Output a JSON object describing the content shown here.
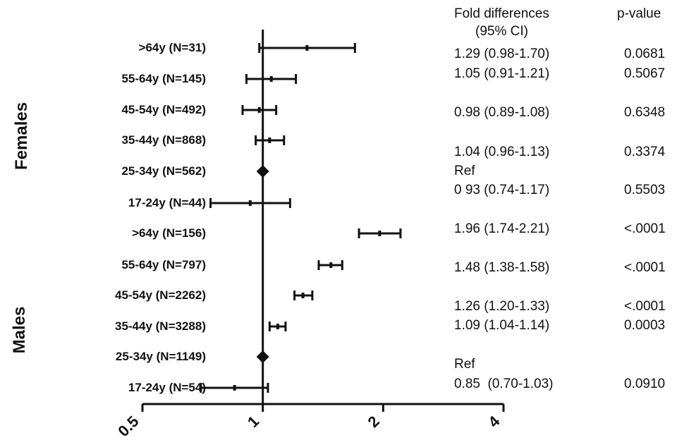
{
  "groups": [
    "Females",
    "Males"
  ],
  "headers": {
    "fold": "Fold differences",
    "ci": "(95% CI)",
    "p": "p-value"
  },
  "rows": [
    {
      "label": ">64y (N=31)",
      "fold": "1.29 (0.98-1.70)",
      "p": "0.0681"
    },
    {
      "label": "55-64y (N=145)",
      "fold": "1.05 (0.91-1.21)",
      "p": "0.5067"
    },
    {
      "label": "45-54y (N=492)",
      "fold": "0.98 (0.89-1.08)",
      "p": "0.6348"
    },
    {
      "label": "35-44y (N=868)",
      "fold": "1.04 (0.96-1.13)",
      "p": "0.3374"
    },
    {
      "label": "25-34y (N=562)",
      "fold": "Ref",
      "p": ""
    },
    {
      "label": "17-24y (N=44)",
      "fold": "0 93 (0.74-1.17)",
      "p": "0.5503"
    },
    {
      "label": ">64y (N=156)",
      "fold": "1.96 (1.74-2.21)",
      "p": "<.0001"
    },
    {
      "label": "55-64y (N=797)",
      "fold": "1.48 (1.38-1.58)",
      "p": "<.0001"
    },
    {
      "label": "45-54y (N=2262)",
      "fold": "1.26 (1.20-1.33)",
      "p": "<.0001"
    },
    {
      "label": "35-44y (N=3288)",
      "fold": "1.09 (1.04-1.14)",
      "p": "0.0003"
    },
    {
      "label": "25-34y (N=1149)",
      "fold": "Ref",
      "p": ""
    },
    {
      "label": "17-24y (N=54)",
      "fold": "0.85  (0.70-1.03)",
      "p": "0.0910"
    }
  ],
  "chart_data": {
    "type": "forest",
    "x_scale": "log2",
    "xlim": [
      0.5,
      4
    ],
    "xticks": [
      "0.5",
      "1",
      "2",
      "4"
    ],
    "reference_line": 1,
    "groups": [
      {
        "name": "Females",
        "points": [
          {
            "label": ">64y (N=31)",
            "estimate": 1.29,
            "lower": 0.98,
            "upper": 1.7
          },
          {
            "label": "55-64y (N=145)",
            "estimate": 1.05,
            "lower": 0.91,
            "upper": 1.21
          },
          {
            "label": "45-54y (N=492)",
            "estimate": 0.98,
            "lower": 0.89,
            "upper": 1.08
          },
          {
            "label": "35-44y (N=868)",
            "estimate": 1.04,
            "lower": 0.96,
            "upper": 1.13
          },
          {
            "label": "25-34y (N=562)",
            "estimate": 1.0,
            "reference": true
          },
          {
            "label": "17-24y (N=44)",
            "estimate": 0.93,
            "lower": 0.74,
            "upper": 1.17
          }
        ]
      },
      {
        "name": "Males",
        "points": [
          {
            "label": ">64y (N=156)",
            "estimate": 1.96,
            "lower": 1.74,
            "upper": 2.21
          },
          {
            "label": "55-64y (N=797)",
            "estimate": 1.48,
            "lower": 1.38,
            "upper": 1.58
          },
          {
            "label": "45-54y (N=2262)",
            "estimate": 1.26,
            "lower": 1.2,
            "upper": 1.33
          },
          {
            "label": "35-44y (N=3288)",
            "estimate": 1.09,
            "lower": 1.04,
            "upper": 1.14
          },
          {
            "label": "25-34y (N=1149)",
            "estimate": 1.0,
            "reference": true
          },
          {
            "label": "17-24y (N=54)",
            "estimate": 0.85,
            "lower": 0.7,
            "upper": 1.03
          }
        ]
      }
    ]
  }
}
